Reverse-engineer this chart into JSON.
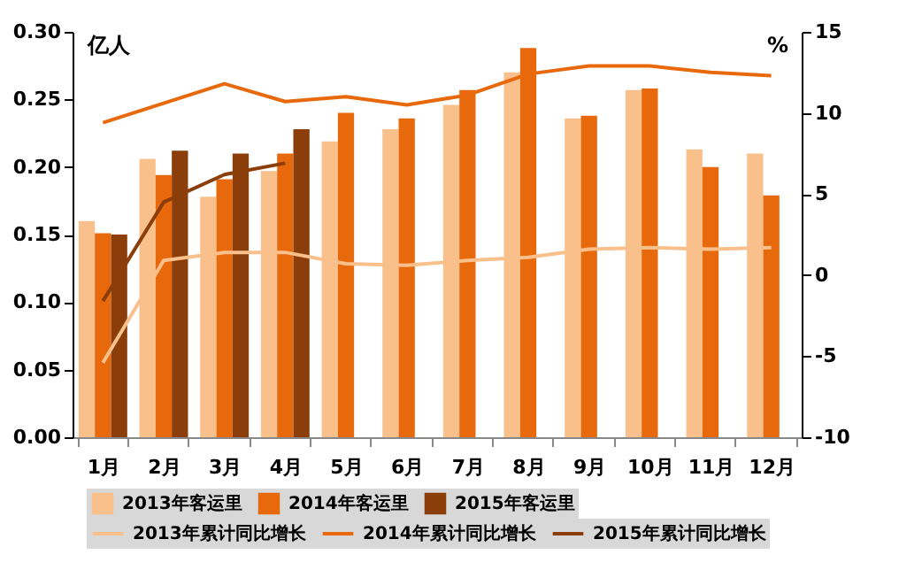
{
  "chart_data": {
    "type": "bar",
    "ylabel": "亿人",
    "y2label": "%",
    "categories": [
      "1月",
      "2月",
      "3月",
      "4月",
      "5月",
      "6月",
      "7月",
      "8月",
      "9月",
      "10月",
      "11月",
      "12月"
    ],
    "series": [
      {
        "name": "2013年客运里",
        "color": "#f9c08c",
        "values": [
          0.16,
          0.206,
          0.178,
          0.197,
          0.219,
          0.228,
          0.246,
          0.27,
          0.236,
          0.257,
          0.213,
          0.21
        ]
      },
      {
        "name": "2014年客运里",
        "color": "#e8690c",
        "values": [
          0.151,
          0.194,
          0.191,
          0.21,
          0.24,
          0.236,
          0.257,
          0.288,
          0.238,
          0.258,
          0.2,
          0.179
        ]
      },
      {
        "name": "2015年客运里",
        "color": "#8b3d0a",
        "values": [
          0.15,
          0.212,
          0.21,
          0.228,
          null,
          null,
          null,
          null,
          null,
          null,
          null,
          null
        ]
      },
      {
        "name": "2013年累计同比增长",
        "type": "line",
        "axis": "y2",
        "color": "#f9c08c",
        "values": [
          -5.4,
          0.9,
          1.4,
          1.4,
          0.7,
          0.6,
          0.9,
          1.1,
          1.6,
          1.7,
          1.6,
          1.7
        ]
      },
      {
        "name": "2014年累计同比增长",
        "type": "line",
        "axis": "y2",
        "color": "#e8690c",
        "values": [
          9.4,
          10.6,
          11.8,
          10.7,
          11.0,
          10.5,
          11.1,
          12.4,
          12.9,
          12.9,
          12.5,
          12.3
        ]
      },
      {
        "name": "2015年累计同比增长",
        "type": "line",
        "axis": "y2",
        "color": "#8b3d0a",
        "values": [
          -1.6,
          4.5,
          6.2,
          6.9,
          null,
          null,
          null,
          null,
          null,
          null,
          null,
          null
        ]
      }
    ],
    "ylim": [
      0,
      0.3
    ],
    "yticks": [
      {
        "value": 0,
        "label": "0.00"
      },
      {
        "value": 0.05,
        "label": "0.05"
      },
      {
        "value": 0.1,
        "label": "0.10"
      },
      {
        "value": 0.15,
        "label": "0.15"
      },
      {
        "value": 0.2,
        "label": "0.20"
      },
      {
        "value": 0.25,
        "label": "0.25"
      },
      {
        "value": 0.3,
        "label": "0.30"
      }
    ],
    "y2lim": [
      -10,
      15
    ],
    "y2ticks": [
      -10,
      -5,
      0,
      5,
      10,
      15
    ],
    "legend": "bottom",
    "grid": false
  }
}
